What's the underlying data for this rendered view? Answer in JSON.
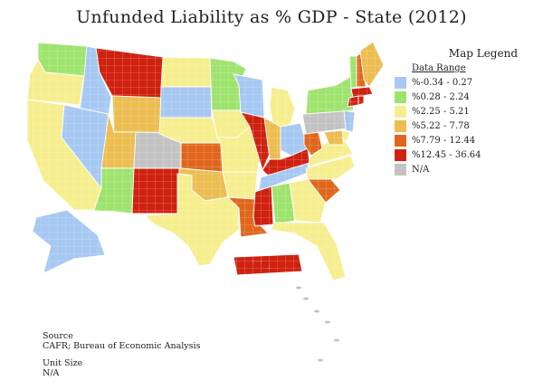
{
  "title": "Unfunded Liability as % GDP - State (2012)",
  "legend": {
    "title": "Map Legend",
    "subtitle": "Data Range",
    "items": [
      {
        "label": "%-0.34 - 0.27",
        "color": "#a6c8f2"
      },
      {
        "label": "%0.28 - 2.24",
        "color": "#9ee36d"
      },
      {
        "label": "%2.25 - 5.21",
        "color": "#f6ee8e"
      },
      {
        "label": "%5.22 - 7.78",
        "color": "#ecbd50"
      },
      {
        "label": "%7.79 - 12.44",
        "color": "#e0661c"
      },
      {
        "label": "%12.45 - 36.64",
        "color": "#cf2110"
      },
      {
        "label": "N/A",
        "color": "#c3c3c3"
      }
    ]
  },
  "source": {
    "heading": "Source",
    "text": "CAFR; Bureau of Economic Analysis"
  },
  "unit": {
    "heading": "Unit Size",
    "text": "N/A"
  },
  "states": [
    {
      "name": "WA",
      "range": 1
    },
    {
      "name": "OR",
      "range": 2
    },
    {
      "name": "CA",
      "range": 2
    },
    {
      "name": "ID",
      "range": 0
    },
    {
      "name": "NV",
      "range": 0
    },
    {
      "name": "MT",
      "range": 5
    },
    {
      "name": "WY",
      "range": 3
    },
    {
      "name": "UT",
      "range": 3
    },
    {
      "name": "AZ",
      "range": 1
    },
    {
      "name": "CO",
      "range": 6
    },
    {
      "name": "NM",
      "range": 5
    },
    {
      "name": "ND",
      "range": 2
    },
    {
      "name": "SD",
      "range": 0
    },
    {
      "name": "NE",
      "range": 2
    },
    {
      "name": "KS",
      "range": 4
    },
    {
      "name": "OK",
      "range": 3
    },
    {
      "name": "TX",
      "range": 2
    },
    {
      "name": "MN",
      "range": 1
    },
    {
      "name": "IA",
      "range": 2
    },
    {
      "name": "MO",
      "range": 2
    },
    {
      "name": "AR",
      "range": 2
    },
    {
      "name": "LA",
      "range": 4
    },
    {
      "name": "WI",
      "range": 0
    },
    {
      "name": "IL",
      "range": 5
    },
    {
      "name": "MI",
      "range": 2
    },
    {
      "name": "IN",
      "range": 3
    },
    {
      "name": "OH",
      "range": 0
    },
    {
      "name": "KY",
      "range": 5
    },
    {
      "name": "TN",
      "range": 0
    },
    {
      "name": "MS",
      "range": 5
    },
    {
      "name": "AL",
      "range": 1
    },
    {
      "name": "GA",
      "range": 2
    },
    {
      "name": "FL",
      "range": 2
    },
    {
      "name": "SC",
      "range": 4
    },
    {
      "name": "NC",
      "range": 2
    },
    {
      "name": "VA",
      "range": 2
    },
    {
      "name": "WV",
      "range": 4
    },
    {
      "name": "PA",
      "range": 6
    },
    {
      "name": "NY",
      "range": 1
    },
    {
      "name": "VT",
      "range": 1
    },
    {
      "name": "NH",
      "range": 4
    },
    {
      "name": "ME",
      "range": 3
    },
    {
      "name": "MA",
      "range": 5
    },
    {
      "name": "CT",
      "range": 5
    },
    {
      "name": "RI",
      "range": 5
    },
    {
      "name": "NJ",
      "range": 0
    },
    {
      "name": "DE",
      "range": 2
    },
    {
      "name": "MD",
      "range": 3
    },
    {
      "name": "AK",
      "range": 0
    },
    {
      "name": "HI",
      "range": 6
    },
    {
      "name": "PR",
      "range": 5
    }
  ]
}
